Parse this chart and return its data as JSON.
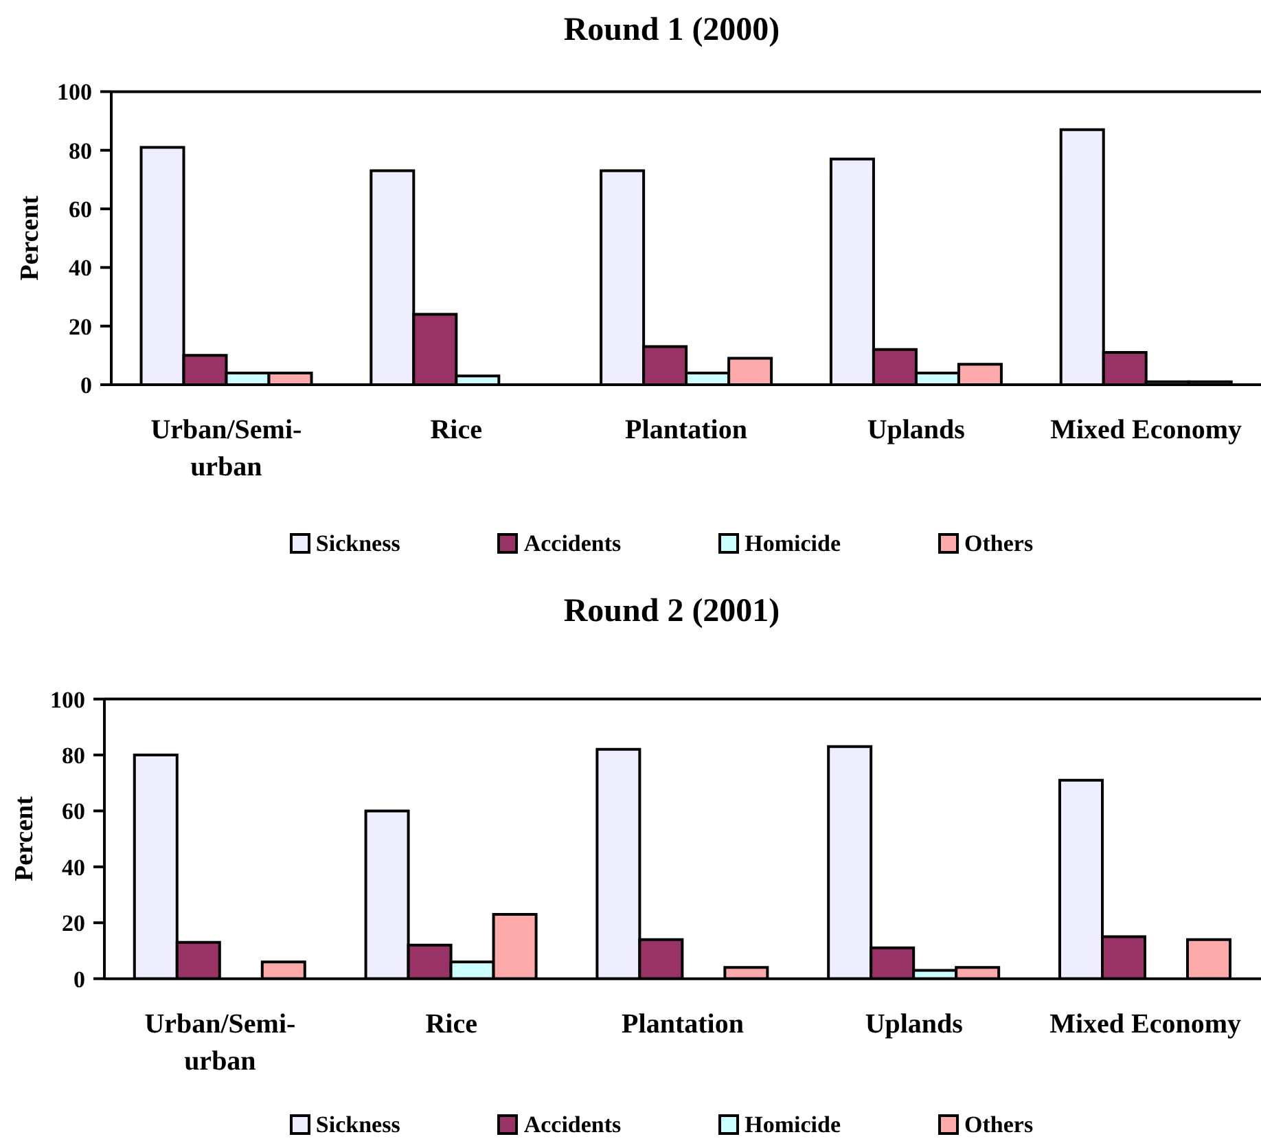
{
  "chart_data": [
    {
      "type": "bar",
      "title": "Round 1 (2000)",
      "ylabel": "Percent",
      "categories": [
        "Urban/Semi-urban",
        "Rice",
        "Plantation",
        "Uplands",
        "Mixed Economy"
      ],
      "series": [
        {
          "name": "Sickness",
          "color": "#eeeeff",
          "values": [
            81,
            73,
            73,
            77,
            87
          ]
        },
        {
          "name": "Accidents",
          "color": "#993366",
          "values": [
            10,
            24,
            13,
            12,
            11
          ]
        },
        {
          "name": "Homicide",
          "color": "#ccffff",
          "values": [
            4,
            3,
            4,
            4,
            1
          ]
        },
        {
          "name": "Others",
          "color": "#ffaaaa",
          "values": [
            4,
            0,
            9,
            7,
            1
          ]
        }
      ],
      "ylim": [
        0,
        100
      ],
      "yticks": [
        0,
        20,
        40,
        60,
        80,
        100
      ],
      "legend": "bottom"
    },
    {
      "type": "bar",
      "title": "Round 2 (2001)",
      "ylabel": "Percent",
      "categories": [
        "Urban/Semi-urban",
        "Rice",
        "Plantation",
        "Uplands",
        "Mixed Economy"
      ],
      "series": [
        {
          "name": "Sickness",
          "color": "#eeeeff",
          "values": [
            80,
            60,
            82,
            83,
            71
          ]
        },
        {
          "name": "Accidents",
          "color": "#993366",
          "values": [
            13,
            12,
            14,
            11,
            15
          ]
        },
        {
          "name": "Homicide",
          "color": "#ccffff",
          "values": [
            0,
            6,
            0,
            3,
            0
          ]
        },
        {
          "name": "Others",
          "color": "#ffaaaa",
          "values": [
            6,
            23,
            4,
            4,
            14
          ]
        }
      ],
      "ylim": [
        0,
        100
      ],
      "yticks": [
        0,
        20,
        40,
        60,
        80,
        100
      ],
      "legend": "bottom"
    }
  ]
}
